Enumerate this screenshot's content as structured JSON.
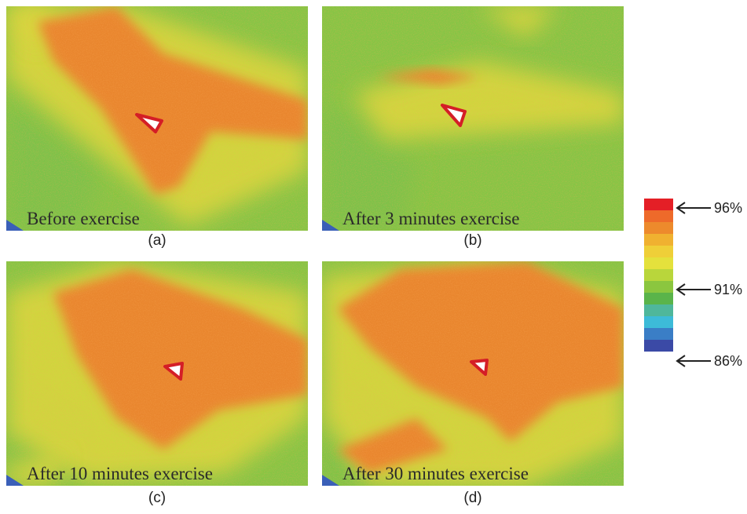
{
  "panels": [
    {
      "caption": "Before exercise",
      "label": "(a)"
    },
    {
      "caption": "After 3 minutes exercise",
      "label": "(b)"
    },
    {
      "caption": "After 10 minutes exercise",
      "label": "(c)"
    },
    {
      "caption": "After 30 minutes exercise",
      "label": "(d)"
    }
  ],
  "colorbar": {
    "labels": [
      "96%",
      "91%",
      "86%"
    ]
  }
}
